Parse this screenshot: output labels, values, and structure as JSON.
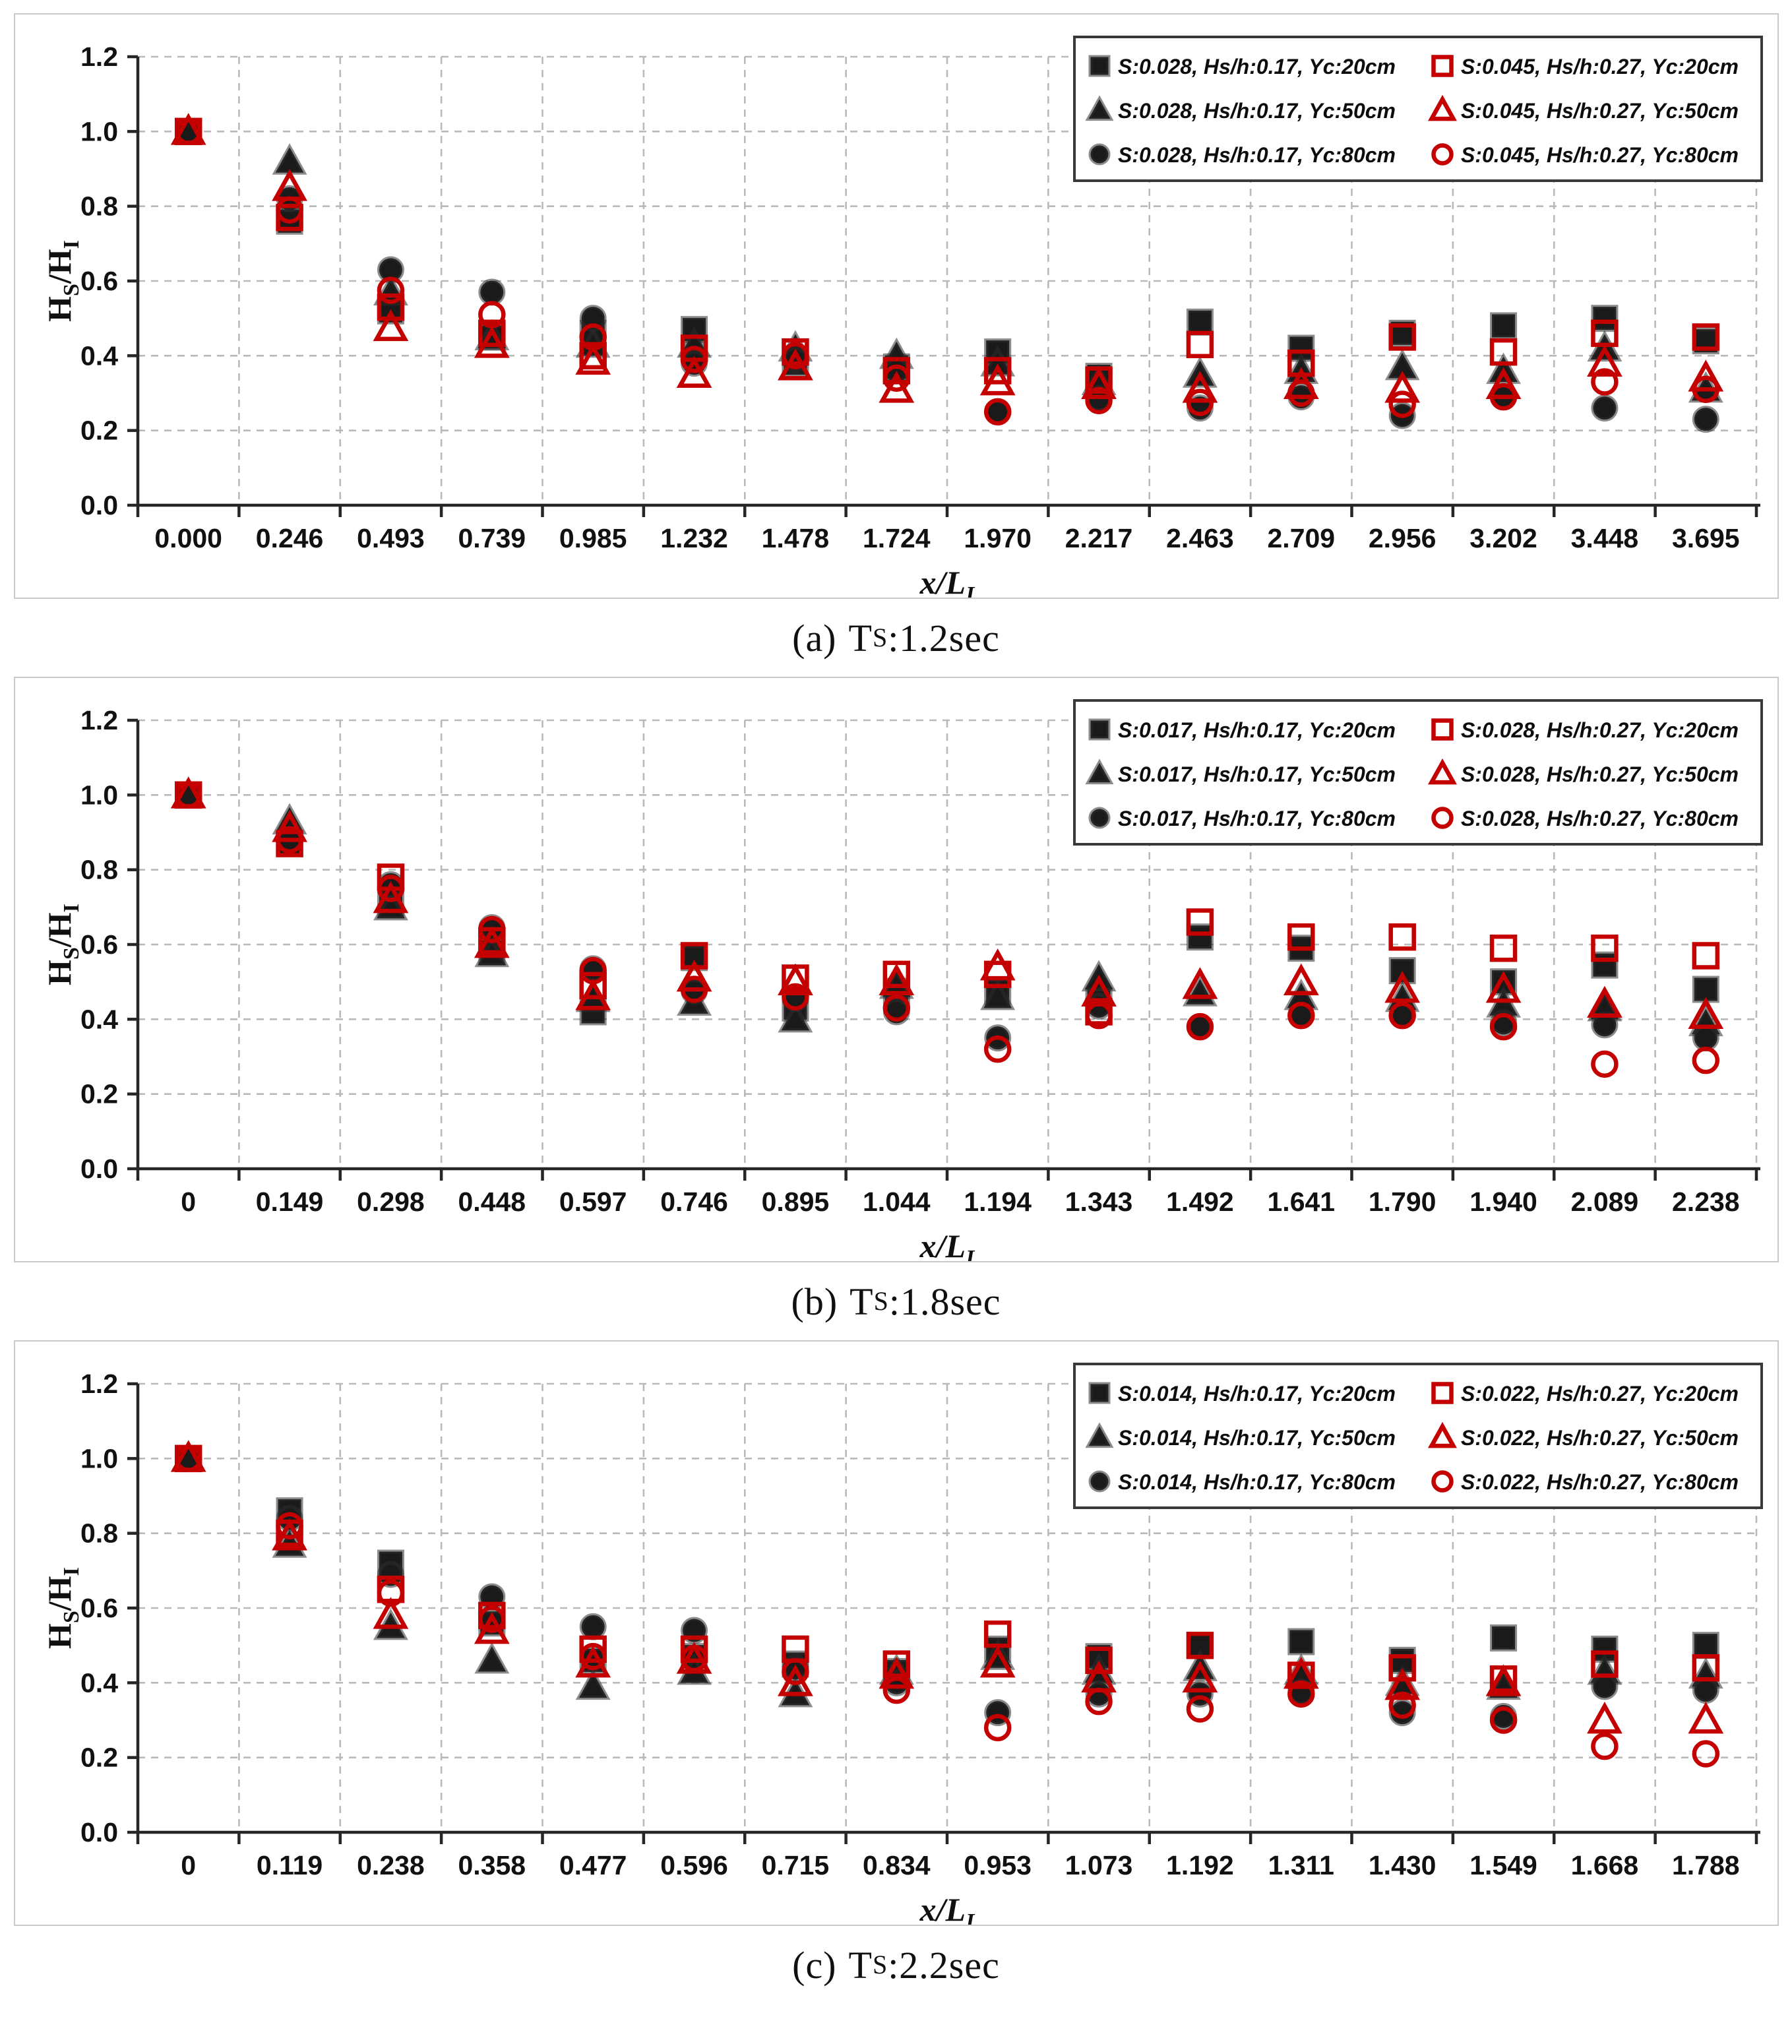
{
  "page": {
    "background": "#ffffff"
  },
  "colors": {
    "black_series": "#1a1a1a",
    "red_series": "#c40000",
    "grid": "#b9b9b9",
    "axis": "#262626",
    "panel_border": "#c9c9c9",
    "legend_border": "#3a3a3a",
    "tick_text": "#111111"
  },
  "axis_labels": {
    "x_main": "x/L",
    "x_sub": "I",
    "y_parts": [
      "H",
      "S",
      "/H",
      "I"
    ]
  },
  "chart_data": [
    {
      "type": "scatter",
      "caption": {
        "prefix": "(a)",
        "main": "T",
        "sub": "S",
        "suffix": ":1.2sec"
      },
      "xlabel": "x/L_I",
      "ylabel": "Hs/HI",
      "ylim": [
        0.0,
        1.2
      ],
      "ytick_labels": [
        "0.0",
        "0.2",
        "0.4",
        "0.6",
        "0.8",
        "1.0",
        "1.2"
      ],
      "grid": true,
      "legend_position": "top-right",
      "categories": [
        "0.000",
        "0.246",
        "0.493",
        "0.739",
        "0.985",
        "1.232",
        "1.478",
        "1.724",
        "1.970",
        "2.217",
        "2.463",
        "2.709",
        "2.956",
        "3.202",
        "3.448",
        "3.695"
      ],
      "series": [
        {
          "name": "S:0.028, Hs/h:0.17, Yc:20cm",
          "marker": "square",
          "filled": true,
          "color": "black",
          "values": [
            1.0,
            0.76,
            0.52,
            0.45,
            0.46,
            0.47,
            0.38,
            0.37,
            0.41,
            0.345,
            0.49,
            0.42,
            0.46,
            0.48,
            0.5,
            0.44
          ]
        },
        {
          "name": "S:0.028, Hs/h:0.17, Yc:50cm",
          "marker": "triangle",
          "filled": true,
          "color": "black",
          "values": [
            1.0,
            0.92,
            0.57,
            0.45,
            0.43,
            0.43,
            0.42,
            0.4,
            0.38,
            0.33,
            0.35,
            0.36,
            0.37,
            0.36,
            0.42,
            0.31
          ]
        },
        {
          "name": "S:0.028, Hs/h:0.17, Yc:80cm",
          "marker": "circle",
          "filled": true,
          "color": "black",
          "values": [
            1.0,
            0.82,
            0.63,
            0.57,
            0.5,
            0.38,
            0.39,
            0.36,
            0.25,
            0.285,
            0.26,
            0.29,
            0.24,
            0.29,
            0.26,
            0.23
          ]
        },
        {
          "name": "S:0.045, Hs/h:0.27, Yc:20cm",
          "marker": "square",
          "filled": false,
          "color": "red",
          "values": [
            1.0,
            0.77,
            0.53,
            0.46,
            0.4,
            0.42,
            0.41,
            0.36,
            0.36,
            0.335,
            0.43,
            0.38,
            0.45,
            0.41,
            0.46,
            0.45
          ]
        },
        {
          "name": "S:0.045, Hs/h:0.27, Yc:50cm",
          "marker": "triangle",
          "filled": false,
          "color": "red",
          "values": [
            1.0,
            0.85,
            0.475,
            0.43,
            0.385,
            0.35,
            0.37,
            0.31,
            0.33,
            0.32,
            0.31,
            0.32,
            0.31,
            0.32,
            0.38,
            0.34
          ]
        },
        {
          "name": "S:0.045, Hs/h:0.27, Yc:80cm",
          "marker": "circle",
          "filled": false,
          "color": "red",
          "values": [
            1.0,
            0.79,
            0.575,
            0.51,
            0.45,
            0.39,
            0.4,
            0.34,
            0.25,
            0.28,
            0.275,
            0.3,
            0.27,
            0.29,
            0.33,
            0.31
          ]
        }
      ]
    },
    {
      "type": "scatter",
      "caption": {
        "prefix": "(b)",
        "main": "T",
        "sub": "S",
        "suffix": ":1.8sec"
      },
      "xlabel": "x/L_I",
      "ylabel": "Hs/HI",
      "ylim": [
        0.0,
        1.2
      ],
      "ytick_labels": [
        "0.0",
        "0.2",
        "0.4",
        "0.6",
        "0.8",
        "1.0",
        "1.2"
      ],
      "grid": true,
      "legend_position": "top-right",
      "categories": [
        "0",
        "0.149",
        "0.298",
        "0.448",
        "0.597",
        "0.746",
        "0.895",
        "1.044",
        "1.194",
        "1.343",
        "1.492",
        "1.641",
        "1.790",
        "1.940",
        "2.089",
        "2.238"
      ],
      "series": [
        {
          "name": "S:0.017, Hs/h:0.17, Yc:20cm",
          "marker": "square",
          "filled": true,
          "color": "black",
          "values": [
            1.0,
            0.87,
            0.71,
            0.58,
            0.42,
            0.565,
            0.43,
            0.475,
            0.475,
            0.45,
            0.62,
            0.59,
            0.53,
            0.5,
            0.545,
            0.48
          ]
        },
        {
          "name": "S:0.017, Hs/h:0.17, Yc:50cm",
          "marker": "triangle",
          "filled": true,
          "color": "black",
          "values": [
            1.0,
            0.93,
            0.7,
            0.575,
            0.455,
            0.445,
            0.4,
            0.49,
            0.46,
            0.51,
            0.47,
            0.46,
            0.455,
            0.44,
            0.43,
            0.39
          ]
        },
        {
          "name": "S:0.017, Hs/h:0.17, Yc:80cm",
          "marker": "circle",
          "filled": true,
          "color": "black",
          "values": [
            1.0,
            0.88,
            0.76,
            0.645,
            0.535,
            0.475,
            0.455,
            0.42,
            0.35,
            0.435,
            0.38,
            0.41,
            0.41,
            0.39,
            0.385,
            0.35
          ]
        },
        {
          "name": "S:0.028, Hs/h:0.27, Yc:20cm",
          "marker": "square",
          "filled": false,
          "color": "red",
          "values": [
            1.0,
            0.87,
            0.78,
            0.61,
            0.49,
            0.57,
            0.51,
            0.52,
            0.52,
            0.42,
            0.66,
            0.62,
            0.62,
            0.59,
            0.59,
            0.57
          ]
        },
        {
          "name": "S:0.028, Hs/h:0.27, Yc:50cm",
          "marker": "triangle",
          "filled": false,
          "color": "red",
          "values": [
            1.0,
            0.91,
            0.72,
            0.6,
            0.46,
            0.51,
            0.5,
            0.5,
            0.54,
            0.47,
            0.49,
            0.5,
            0.48,
            0.48,
            0.44,
            0.41
          ]
        },
        {
          "name": "S:0.028, Hs/h:0.27, Yc:80cm",
          "marker": "circle",
          "filled": false,
          "color": "red",
          "values": [
            1.0,
            0.88,
            0.75,
            0.64,
            0.53,
            0.48,
            0.46,
            0.43,
            0.32,
            0.41,
            0.38,
            0.41,
            0.41,
            0.38,
            0.28,
            0.29
          ]
        }
      ]
    },
    {
      "type": "scatter",
      "caption": {
        "prefix": "(c)",
        "main": "T",
        "sub": "S",
        "suffix": ":2.2sec"
      },
      "xlabel": "x/L_I",
      "ylabel": "Hs/HI",
      "ylim": [
        0.0,
        1.2
      ],
      "ytick_labels": [
        "0.0",
        "0.2",
        "0.4",
        "0.6",
        "0.8",
        "1.0",
        "1.2"
      ],
      "grid": true,
      "legend_position": "top-right",
      "categories": [
        "0",
        "0.119",
        "0.238",
        "0.358",
        "0.477",
        "0.596",
        "0.715",
        "0.834",
        "0.953",
        "1.073",
        "1.192",
        "1.311",
        "1.430",
        "1.549",
        "1.668",
        "1.788"
      ],
      "series": [
        {
          "name": "S:0.014, Hs/h:0.17, Yc:20cm",
          "marker": "square",
          "filled": true,
          "color": "black",
          "values": [
            1.0,
            0.86,
            0.72,
            0.56,
            0.46,
            0.47,
            0.45,
            0.43,
            0.49,
            0.47,
            0.5,
            0.51,
            0.46,
            0.52,
            0.49,
            0.5
          ]
        },
        {
          "name": "S:0.014, Hs/h:0.17, Yc:50cm",
          "marker": "triangle",
          "filled": true,
          "color": "black",
          "values": [
            1.0,
            0.77,
            0.55,
            0.46,
            0.39,
            0.43,
            0.37,
            0.43,
            0.47,
            0.43,
            0.44,
            0.43,
            0.4,
            0.39,
            0.43,
            0.42
          ]
        },
        {
          "name": "S:0.014, Hs/h:0.17, Yc:80cm",
          "marker": "circle",
          "filled": true,
          "color": "black",
          "values": [
            1.0,
            0.84,
            0.69,
            0.63,
            0.55,
            0.54,
            0.44,
            0.4,
            0.32,
            0.37,
            0.37,
            0.375,
            0.32,
            0.31,
            0.39,
            0.38
          ]
        },
        {
          "name": "S:0.022, Hs/h:0.27, Yc:20cm",
          "marker": "square",
          "filled": false,
          "color": "red",
          "values": [
            1.0,
            0.8,
            0.65,
            0.58,
            0.49,
            0.49,
            0.49,
            0.45,
            0.53,
            0.46,
            0.5,
            0.42,
            0.44,
            0.41,
            0.45,
            0.44
          ]
        },
        {
          "name": "S:0.022, Hs/h:0.27, Yc:50cm",
          "marker": "triangle",
          "filled": false,
          "color": "red",
          "values": [
            1.0,
            0.79,
            0.58,
            0.54,
            0.45,
            0.46,
            0.4,
            0.42,
            0.45,
            0.41,
            0.41,
            0.42,
            0.39,
            0.4,
            0.3,
            0.3
          ]
        },
        {
          "name": "S:0.022, Hs/h:0.27, Yc:80cm",
          "marker": "circle",
          "filled": false,
          "color": "red",
          "values": [
            1.0,
            0.82,
            0.64,
            0.57,
            0.47,
            0.465,
            0.43,
            0.38,
            0.28,
            0.35,
            0.33,
            0.37,
            0.34,
            0.3,
            0.23,
            0.21
          ]
        }
      ]
    }
  ]
}
